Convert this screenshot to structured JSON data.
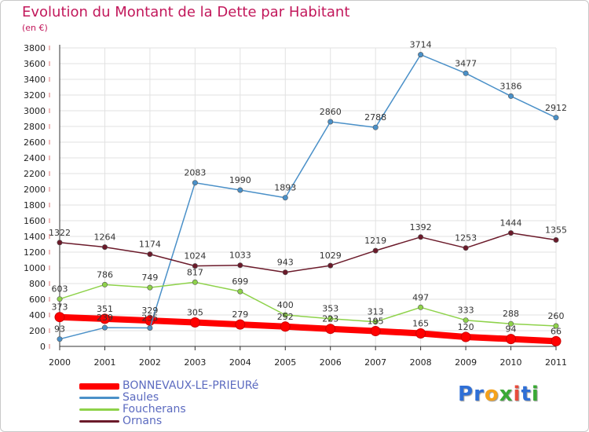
{
  "header": {
    "title": "Evolution du Montant de la Dette par Habitant",
    "subtitle": "(en €)"
  },
  "brand": {
    "letters": [
      {
        "ch": "P",
        "color": "#2f6fd6"
      },
      {
        "ch": "r",
        "color": "#2f6fd6"
      },
      {
        "ch": "o",
        "color": "#f5a21b"
      },
      {
        "ch": "x",
        "color": "#3aa935"
      },
      {
        "ch": "i",
        "color": "#e74c3c"
      },
      {
        "ch": "t",
        "color": "#2f6fd6"
      },
      {
        "ch": "i",
        "color": "#3aa935"
      }
    ]
  },
  "chart_data": {
    "type": "line",
    "title": "Evolution du Montant de la Dette par Habitant",
    "subtitle": "(en €)",
    "xlabel": "",
    "ylabel": "",
    "x": [
      "2000",
      "2001",
      "2002",
      "2003",
      "2004",
      "2005",
      "2006",
      "2007",
      "2008",
      "2009",
      "2010",
      "2011"
    ],
    "ylim": [
      0,
      3800
    ],
    "yticks": [
      0,
      200,
      400,
      600,
      800,
      1000,
      1200,
      1400,
      1600,
      1800,
      2000,
      2200,
      2400,
      2600,
      2800,
      3000,
      3200,
      3400,
      3600,
      3800
    ],
    "grid": true,
    "legend_position": "bottom-left",
    "series": [
      {
        "name": "BONNEVAUX-LE-PRIEURé",
        "color": "#ff0000",
        "values": [
          373,
          351,
          329,
          305,
          279,
          252,
          223,
          195,
          165,
          120,
          94,
          66
        ]
      },
      {
        "name": "Saules",
        "color": "#4a90c8",
        "values": [
          93,
          239,
          235,
          2083,
          1990,
          1893,
          2860,
          2788,
          3714,
          3477,
          3186,
          2912
        ]
      },
      {
        "name": "Foucherans",
        "color": "#8ed24a",
        "values": [
          603,
          786,
          749,
          817,
          699,
          400,
          353,
          313,
          497,
          333,
          288,
          260
        ]
      },
      {
        "name": "Ornans",
        "color": "#6b1a2a",
        "values": [
          1322,
          1264,
          1174,
          1024,
          1033,
          943,
          1029,
          1219,
          1392,
          1253,
          1444,
          1355
        ]
      }
    ]
  }
}
